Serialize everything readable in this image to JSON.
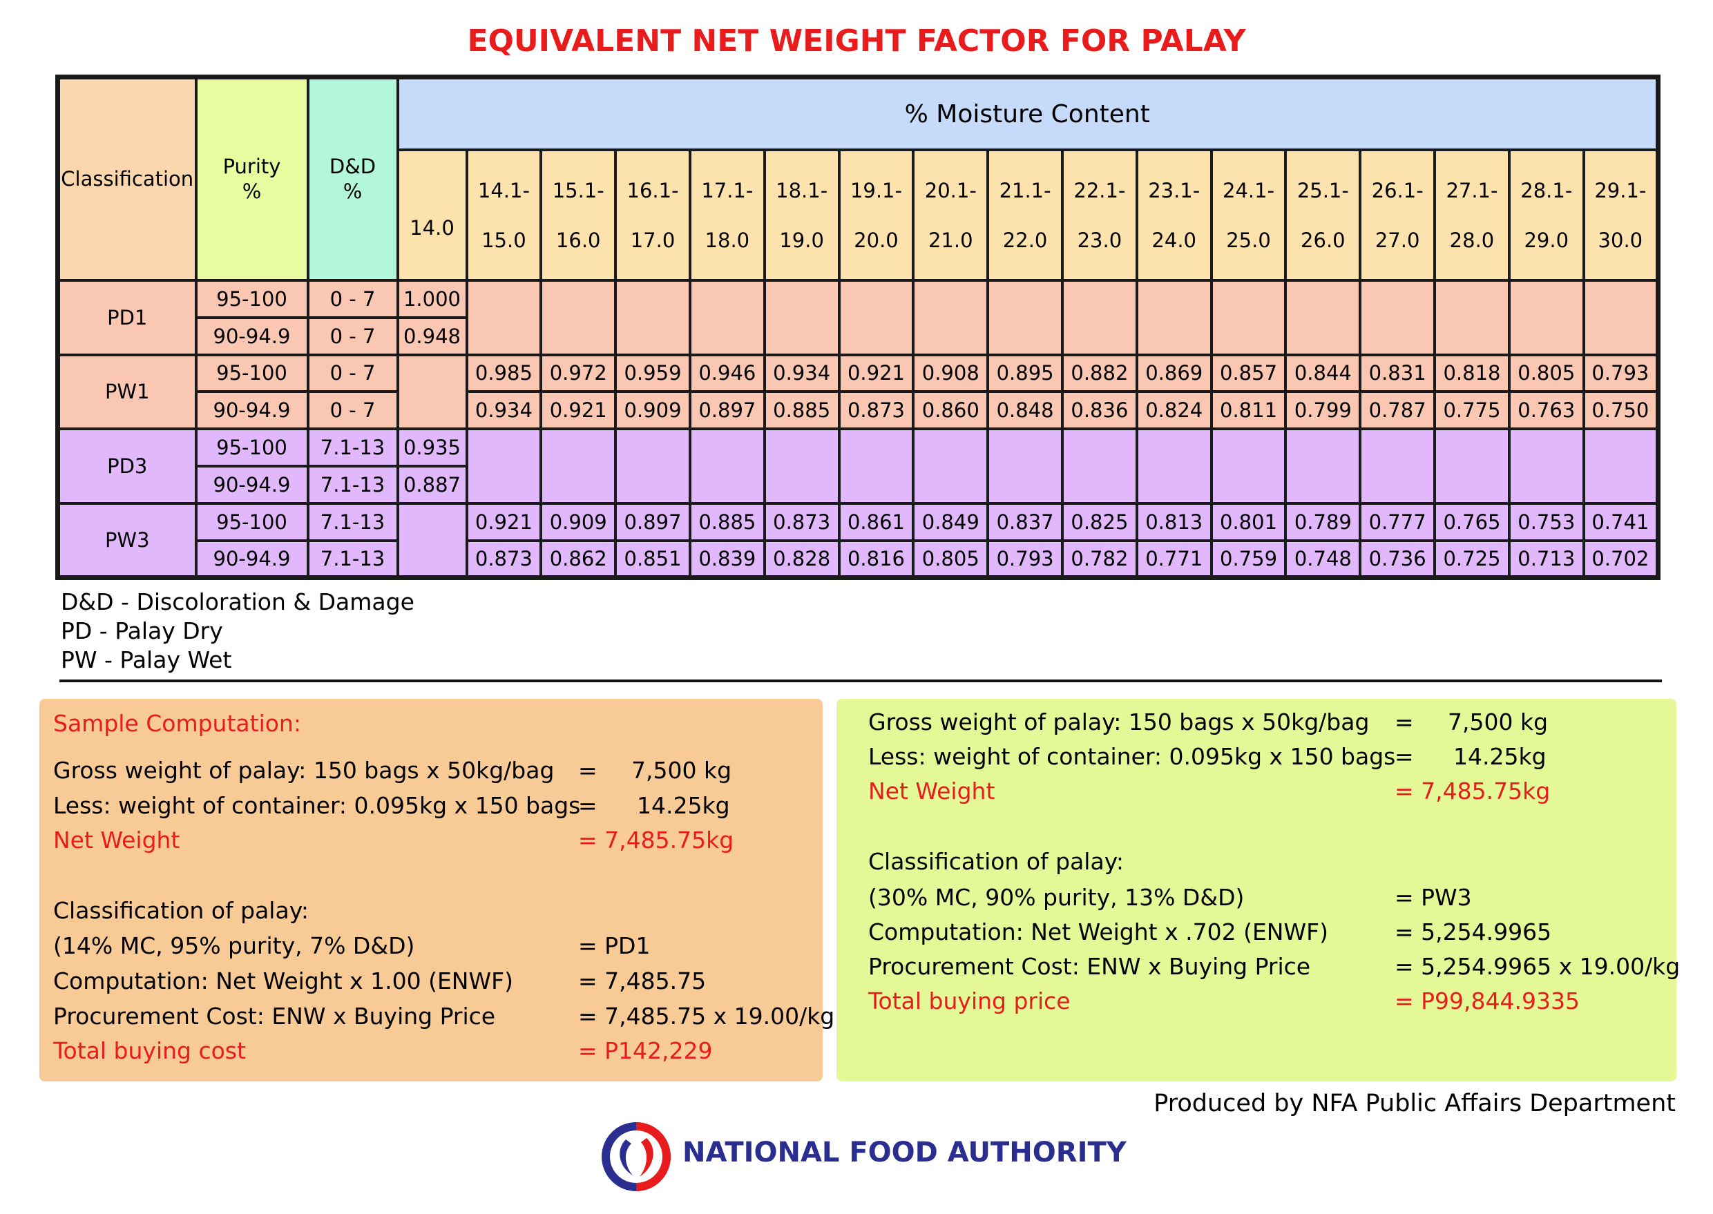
{
  "title": "EQUIVALENT NET WEIGHT FACTOR FOR PALAY",
  "table": {
    "headers": {
      "classification": "Classification",
      "purity_line1": "Purity",
      "purity_line2": "%",
      "dd_line1": "D&D",
      "dd_line2": "%",
      "moisture": "% Moisture Content",
      "first_col": "14.0",
      "ranges": [
        {
          "from": "14.1-",
          "to": "15.0"
        },
        {
          "from": "15.1-",
          "to": "16.0"
        },
        {
          "from": "16.1-",
          "to": "17.0"
        },
        {
          "from": "17.1-",
          "to": "18.0"
        },
        {
          "from": "18.1-",
          "to": "19.0"
        },
        {
          "from": "19.1-",
          "to": "20.0"
        },
        {
          "from": "20.1-",
          "to": "21.0"
        },
        {
          "from": "21.1-",
          "to": "22.0"
        },
        {
          "from": "22.1-",
          "to": "23.0"
        },
        {
          "from": "23.1-",
          "to": "24.0"
        },
        {
          "from": "24.1-",
          "to": "25.0"
        },
        {
          "from": "25.1-",
          "to": "26.0"
        },
        {
          "from": "26.1-",
          "to": "27.0"
        },
        {
          "from": "27.1-",
          "to": "28.0"
        },
        {
          "from": "28.1-",
          "to": "29.0"
        },
        {
          "from": "29.1-",
          "to": "30.0"
        }
      ]
    },
    "groups": [
      {
        "label": "PD1",
        "color": "#fac7b3",
        "rows": [
          {
            "purity": "95-100",
            "dd": "0 - 7",
            "at14": "1.000",
            "values": []
          },
          {
            "purity": "90-94.9",
            "dd": "0 - 7",
            "at14": "0.948",
            "values": []
          }
        ]
      },
      {
        "label": "PW1",
        "color": "#fac7b3",
        "rows": [
          {
            "purity": "95-100",
            "dd": "0 - 7",
            "at14": "",
            "values": [
              "0.985",
              "0.972",
              "0.959",
              "0.946",
              "0.934",
              "0.921",
              "0.908",
              "0.895",
              "0.882",
              "0.869",
              "0.857",
              "0.844",
              "0.831",
              "0.818",
              "0.805",
              "0.793"
            ]
          },
          {
            "purity": "90-94.9",
            "dd": "0 - 7",
            "at14": "",
            "values": [
              "0.934",
              "0.921",
              "0.909",
              "0.897",
              "0.885",
              "0.873",
              "0.860",
              "0.848",
              "0.836",
              "0.824",
              "0.811",
              "0.799",
              "0.787",
              "0.775",
              "0.763",
              "0.750"
            ]
          }
        ]
      },
      {
        "label": "PD3",
        "color": "#e0b8fb",
        "rows": [
          {
            "purity": "95-100",
            "dd": "7.1-13",
            "at14": "0.935",
            "values": []
          },
          {
            "purity": "90-94.9",
            "dd": "7.1-13",
            "at14": "0.887",
            "values": []
          }
        ]
      },
      {
        "label": "PW3",
        "color": "#e0b8fb",
        "rows": [
          {
            "purity": "95-100",
            "dd": "7.1-13",
            "at14": "",
            "values": [
              "0.921",
              "0.909",
              "0.897",
              "0.885",
              "0.873",
              "0.861",
              "0.849",
              "0.837",
              "0.825",
              "0.813",
              "0.801",
              "0.789",
              "0.777",
              "0.765",
              "0.753",
              "0.741"
            ]
          },
          {
            "purity": "90-94.9",
            "dd": "7.1-13",
            "at14": "",
            "values": [
              "0.873",
              "0.862",
              "0.851",
              "0.839",
              "0.828",
              "0.816",
              "0.805",
              "0.793",
              "0.782",
              "0.771",
              "0.759",
              "0.748",
              "0.736",
              "0.725",
              "0.713",
              "0.702"
            ]
          }
        ]
      }
    ]
  },
  "legend": [
    "D&D - Discoloration & Damage",
    "PD - Palay Dry",
    "PW - Palay Wet"
  ],
  "left_panel": {
    "heading": "Sample Computation:",
    "gross_label": "Gross weight of palay: 150 bags x 50kg/bag",
    "gross_eq": "=",
    "gross_value": "7,500 kg",
    "less_label": "Less: weight of container: 0.095kg x 150 bags",
    "less_eq": "=",
    "less_value": "14.25kg",
    "net_label": "Net Weight",
    "net_value": "=  7,485.75kg",
    "class_label": "Classification of palay:",
    "class_detail": "(14% MC, 95% purity, 7% D&D)",
    "class_value": "= PD1",
    "comp_label": "Computation: Net Weight x 1.00 (ENWF)",
    "comp_value": "= 7,485.75",
    "proc_label": "Procurement Cost: ENW x Buying Price",
    "proc_value": "= 7,485.75 x 19.00/kg",
    "total_label": "Total buying cost",
    "total_value": "= P142,229"
  },
  "right_panel": {
    "gross_label": "Gross weight of palay: 150 bags x 50kg/bag",
    "gross_eq": "=",
    "gross_value": "7,500 kg",
    "less_label": "Less: weight of container: 0.095kg x 150 bags",
    "less_eq": "=",
    "less_value": "14.25kg",
    "net_label": "Net Weight",
    "net_value": "=  7,485.75kg",
    "class_label": "Classification of palay:",
    "class_detail": "(30% MC, 90% purity, 13% D&D)",
    "class_value": "= PW3",
    "comp_label": "Computation: Net Weight x .702 (ENWF)",
    "comp_value": "= 5,254.9965",
    "proc_label": "Procurement Cost: ENW x Buying Price",
    "proc_value": "= 5,254.9965 x 19.00/kg",
    "total_label": "Total buying price",
    "total_value": "= P99,844.9335"
  },
  "credit": "Produced by NFA Public Affairs Department",
  "organization": "NATIONAL FOOD AUTHORITY",
  "colors": {
    "accent_red": "#e81c1c",
    "nfa_blue": "#2b2e91",
    "dry_row": "#fac7b3",
    "wet3_row": "#e0b8fb"
  }
}
